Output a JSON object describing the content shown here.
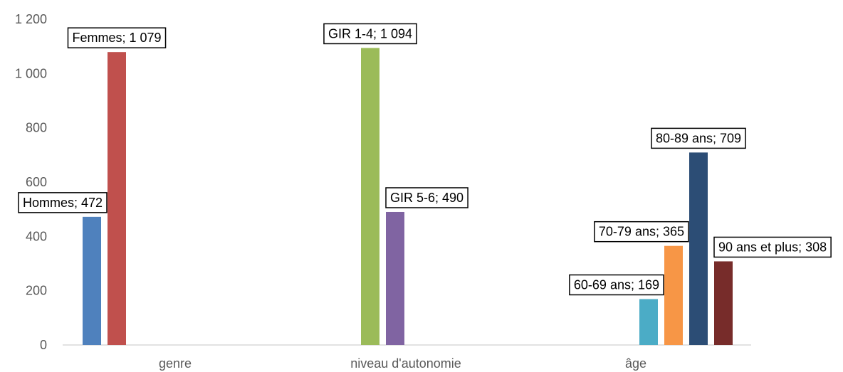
{
  "chart_data": {
    "type": "bar",
    "categories": [
      "genre",
      "niveau d'autonomie",
      "âge"
    ],
    "yticks": [
      "0",
      "200",
      "400",
      "600",
      "800",
      "1 000",
      "1 200"
    ],
    "ylim": [
      0,
      1200
    ],
    "grid": false,
    "legend": "none",
    "groups": [
      {
        "category": "genre",
        "bars": [
          {
            "name": "Hommes",
            "value": 472,
            "label": "Hommes; 472",
            "color": "#4f81bd"
          },
          {
            "name": "Femmes",
            "value": 1079,
            "label": "Femmes; 1 079",
            "color": "#c0504d"
          }
        ]
      },
      {
        "category": "niveau d'autonomie",
        "bars": [
          {
            "name": "GIR 1-4",
            "value": 1094,
            "label": "GIR 1-4; 1 094",
            "color": "#9bbb59"
          },
          {
            "name": "GIR 5-6",
            "value": 490,
            "label": "GIR 5-6; 490",
            "color": "#8064a2"
          }
        ]
      },
      {
        "category": "âge",
        "bars": [
          {
            "name": "60-69 ans",
            "value": 169,
            "label": "60-69 ans; 169",
            "color": "#4bacc6"
          },
          {
            "name": "70-79 ans",
            "value": 365,
            "label": "70-79 ans; 365",
            "color": "#f79646"
          },
          {
            "name": "80-89 ans",
            "value": 709,
            "label": "80-89 ans; 709",
            "color": "#2c4d75"
          },
          {
            "name": "90 ans et plus",
            "value": 308,
            "label": "90 ans et plus; 308",
            "color": "#772c2a"
          }
        ]
      }
    ]
  }
}
